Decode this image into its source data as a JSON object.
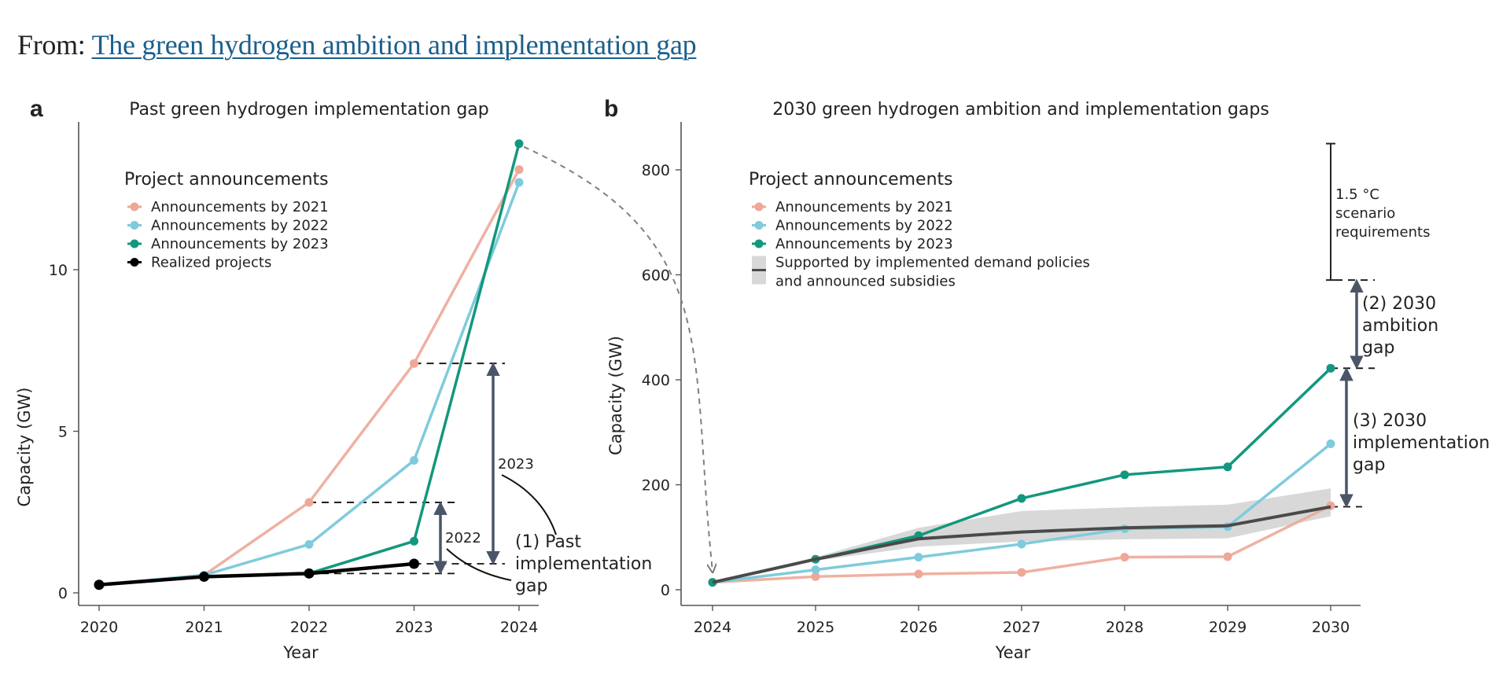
{
  "header": {
    "prefix": "From:",
    "article_link": "The green hydrogen ambition and implementation gap"
  },
  "colors": {
    "ann2021": "#eda898",
    "ann2022": "#7fcbdc",
    "ann2023": "#13977e",
    "realized": "#000000",
    "policy_line": "#4a4a4a",
    "policy_band": "#d8d8d8",
    "gap_arrow": "#4a5568"
  },
  "chart_data": [
    {
      "panel": "a",
      "type": "line",
      "title": "Past green hydrogen implementation gap",
      "xlabel": "Year",
      "ylabel": "Capacity (GW)",
      "x": [
        2020,
        2021,
        2022,
        2023,
        2024
      ],
      "xticks": [
        "2020",
        "2021",
        "2022",
        "2023",
        "2024"
      ],
      "yticks": [
        0,
        5,
        10
      ],
      "ylim": [
        -0.3,
        14.5
      ],
      "legend": {
        "title": "Project announcements",
        "position": "top-left",
        "items": [
          "Announcements by 2021",
          "Announcements by 2022",
          "Announcements by 2023",
          "Realized projects"
        ]
      },
      "series": [
        {
          "name": "Announcements by 2021",
          "color_key": "ann2021",
          "values": [
            0.25,
            0.55,
            2.8,
            7.1,
            13.1
          ]
        },
        {
          "name": "Announcements by 2022",
          "color_key": "ann2022",
          "values": [
            0.25,
            0.55,
            1.5,
            4.1,
            12.7
          ]
        },
        {
          "name": "Announcements by 2023",
          "color_key": "ann2023",
          "values": [
            0.25,
            0.5,
            0.6,
            1.6,
            13.9
          ]
        },
        {
          "name": "Realized projects",
          "color_key": "realized",
          "values": [
            0.25,
            0.5,
            0.6,
            0.9,
            null
          ]
        }
      ],
      "annotations": {
        "gap_2022": {
          "label": "2022",
          "from": 0.6,
          "to": 2.8
        },
        "gap_2023": {
          "label": "2023",
          "from": 0.9,
          "to": 7.1
        },
        "callout": [
          "(1) Past",
          "implementation",
          "gap"
        ]
      }
    },
    {
      "panel": "b",
      "type": "line",
      "title": "2030 green hydrogen ambition and implementation gaps",
      "xlabel": "Year",
      "ylabel": "Capacity (GW)",
      "x": [
        2024,
        2025,
        2026,
        2027,
        2028,
        2029,
        2030
      ],
      "xticks": [
        "2024",
        "2025",
        "2026",
        "2027",
        "2028",
        "2029",
        "2030"
      ],
      "yticks": [
        0,
        200,
        400,
        600,
        800
      ],
      "ylim": [
        -30,
        890
      ],
      "legend": {
        "title": "Project announcements",
        "position": "top-left",
        "items": [
          "Announcements by 2021",
          "Announcements by 2022",
          "Announcements by 2023"
        ],
        "policy_item": [
          "Supported by implemented demand policies",
          "and announced subsidies"
        ]
      },
      "series": [
        {
          "name": "Announcements by 2021",
          "color_key": "ann2021",
          "values": [
            14,
            25,
            30,
            33,
            62,
            63,
            160
          ]
        },
        {
          "name": "Announcements by 2022",
          "color_key": "ann2022",
          "values": [
            14,
            38,
            62,
            87,
            116,
            120,
            278
          ]
        },
        {
          "name": "Announcements by 2023",
          "color_key": "ann2023",
          "values": [
            14,
            58,
            103,
            174,
            219,
            234,
            422
          ]
        },
        {
          "name": "Supported by implemented demand policies and announced subsidies",
          "color_key": "policy_line",
          "values": [
            14,
            58,
            97,
            110,
            118,
            122,
            158
          ],
          "band_low": [
            14,
            55,
            82,
            92,
            96,
            98,
            140
          ],
          "band_high": [
            14,
            62,
            118,
            150,
            157,
            162,
            193
          ]
        }
      ],
      "annotations": {
        "scenario_range": {
          "label": [
            "1.5 °C",
            "scenario",
            "requirements"
          ],
          "from": 590,
          "to": 850
        },
        "ambition_gap": {
          "label": [
            "(2) 2030",
            "ambition",
            "gap"
          ],
          "from": 422,
          "to": 590
        },
        "implementation_gap": {
          "label": [
            "(3) 2030",
            "implementation",
            "gap"
          ],
          "from": 158,
          "to": 422
        }
      }
    }
  ]
}
